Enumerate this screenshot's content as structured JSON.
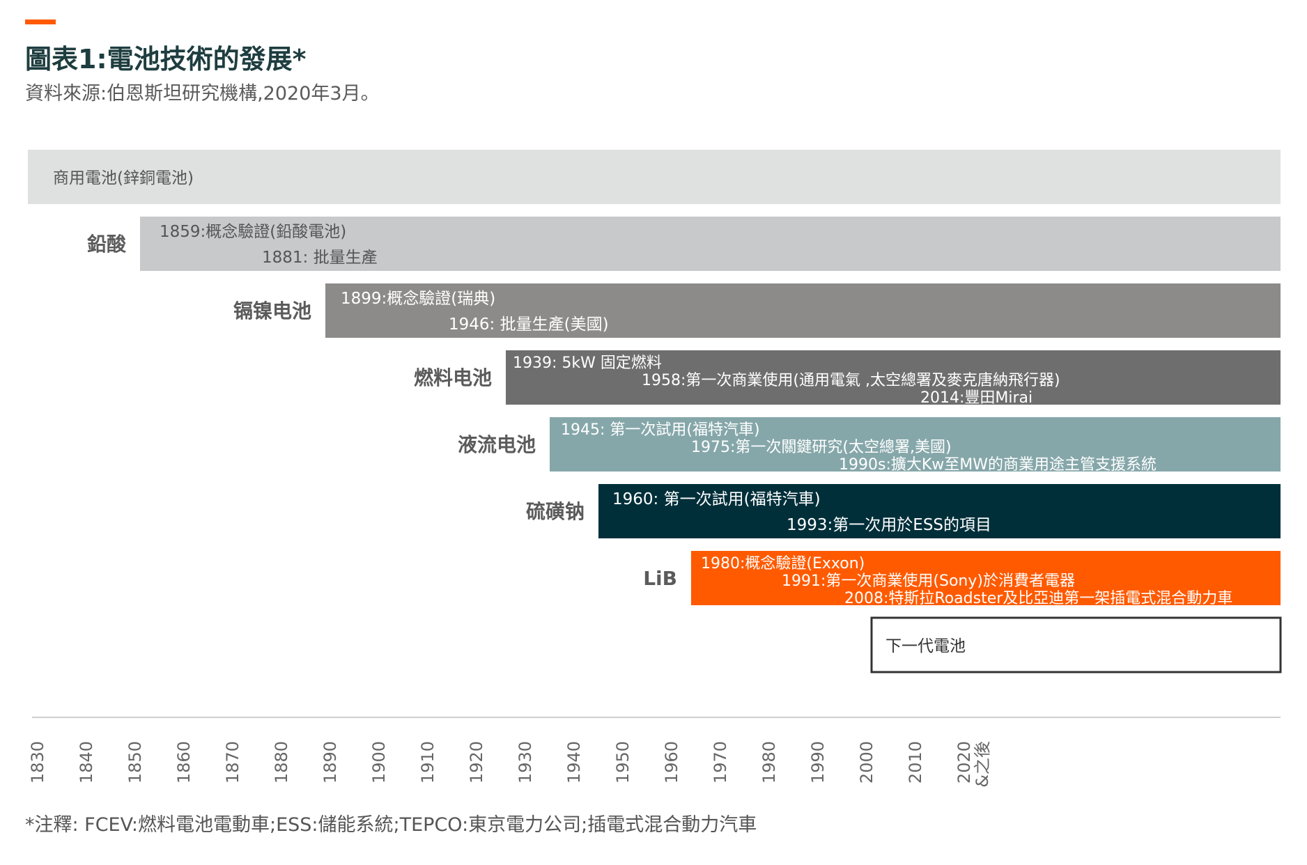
{
  "header": {
    "title": "圖表1:電池技術的發展*",
    "subtitle": "資料來源:伯恩斯坦研究機構,2020年3月。"
  },
  "footnote": "*注釋: FCEV:燃料電池電動車;ESS:儲能系統;TEPCO:東京電力公司;插電式混合動力汽車",
  "colors": {
    "accent": "#ff5a00",
    "commercial": "#dfe0e0",
    "lead_acid": "#c8c9cb",
    "nicd": "#8c8b89",
    "fuel_cell": "#6e6e6e",
    "flow": "#86a7aa",
    "nas": "#002f3a",
    "lib": "#ff5a00",
    "next_gen": "#ffffff"
  },
  "chart_data": {
    "type": "timeline",
    "xlim": [
      1830,
      2090
    ],
    "ticks": [
      "1830",
      "1840",
      "1850",
      "1860",
      "1870",
      "1880",
      "1890",
      "1900",
      "1910",
      "1920",
      "1930",
      "1940",
      "1950",
      "1960",
      "1970",
      "1980",
      "1990",
      "2000",
      "2010",
      "2020\n&之後"
    ],
    "rows": [
      {
        "label": "",
        "start": 1830,
        "color": "#dfe0e0",
        "text_color": "#555555",
        "outline": false,
        "events": [
          "商用電池(鋅銅電池)"
        ]
      },
      {
        "label": "鉛酸",
        "start": 1853,
        "color": "#c8c9cb",
        "text_color": "#555555",
        "outline": false,
        "events": [
          "1859:概念驗證(鉛酸電池)",
          "1881: 批量生產"
        ]
      },
      {
        "label": "镉镍电池",
        "start": 1891,
        "color": "#8c8b89",
        "text_color": "#ffffff",
        "outline": false,
        "events": [
          "1899:概念驗證(瑞典)",
          "1946: 批量生產(美國)"
        ]
      },
      {
        "label": "燃料电池",
        "start": 1928,
        "color": "#6e6e6e",
        "text_color": "#ffffff",
        "outline": false,
        "events": [
          "1939: 5kW 固定燃料",
          "1958:第一次商業使用(通用電氣 ,太空總署及麥克唐納飛行器)",
          "2014:豐田Mirai"
        ]
      },
      {
        "label": "液流电池",
        "start": 1937,
        "color": "#86a7aa",
        "text_color": "#ffffff",
        "outline": false,
        "events": [
          "1945: 第一次試用(福特汽車)",
          "1975:第一次關鍵研究(太空總署,美國)",
          "1990s:擴大Kw至MW的商業用途主管支援系統"
        ]
      },
      {
        "label": "硫磺钠",
        "start": 1947,
        "color": "#002f3a",
        "text_color": "#ffffff",
        "outline": false,
        "events": [
          "1960: 第一次試用(福特汽車)",
          "1993:第一次用於ESS的項目"
        ]
      },
      {
        "label": "LiB",
        "start": 1966,
        "color": "#ff5a00",
        "text_color": "#ffffff",
        "outline": false,
        "events": [
          "1980:概念驗證(Exxon)",
          "1991:第一次商業使用(Sony)於消費者電器",
          "2008:特斯拉Roadster及比亞迪第一架插電式混合動力車"
        ]
      },
      {
        "label": "",
        "start": 2003,
        "color": "#ffffff",
        "text_color": "#333333",
        "outline": true,
        "events": [
          "下一代電池"
        ]
      }
    ]
  }
}
